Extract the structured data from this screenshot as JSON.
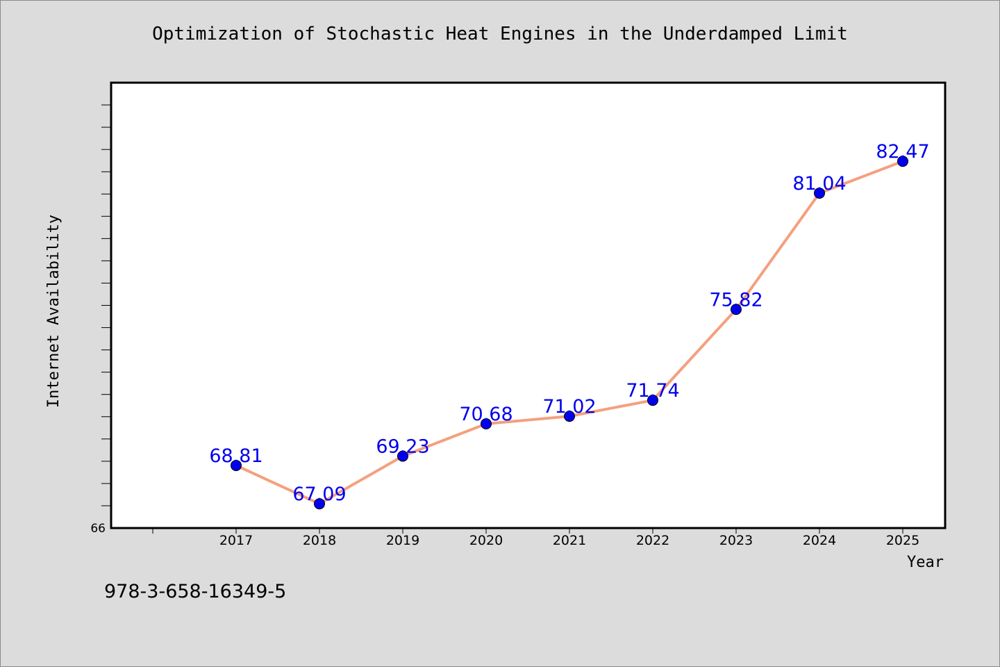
{
  "chart_data": {
    "type": "line",
    "title": "Optimization of Stochastic Heat Engines in the Underdamped Limit",
    "xlabel": "Year",
    "ylabel": "Internet Availability",
    "categories": [
      "2017",
      "2018",
      "2019",
      "2020",
      "2021",
      "2022",
      "2023",
      "2024",
      "2025"
    ],
    "series": [
      {
        "values": [
          68.81,
          67.09,
          69.23,
          70.68,
          71.02,
          71.74,
          75.82,
          81.04,
          82.47
        ],
        "labels": [
          "68.81",
          "67.09",
          "69.23",
          "70.68",
          "71.02",
          "71.74",
          "75.82",
          "81.04",
          "82.47"
        ],
        "line_color": "#f4a07e",
        "marker_color": "#0000ee",
        "label_color": "#0000ee"
      }
    ],
    "y_tick_labels": [
      "66"
    ],
    "ylim": [
      66,
      86
    ],
    "grid": false,
    "legend": "none"
  },
  "footer": {
    "isbn": "978-3-658-16349-5"
  }
}
